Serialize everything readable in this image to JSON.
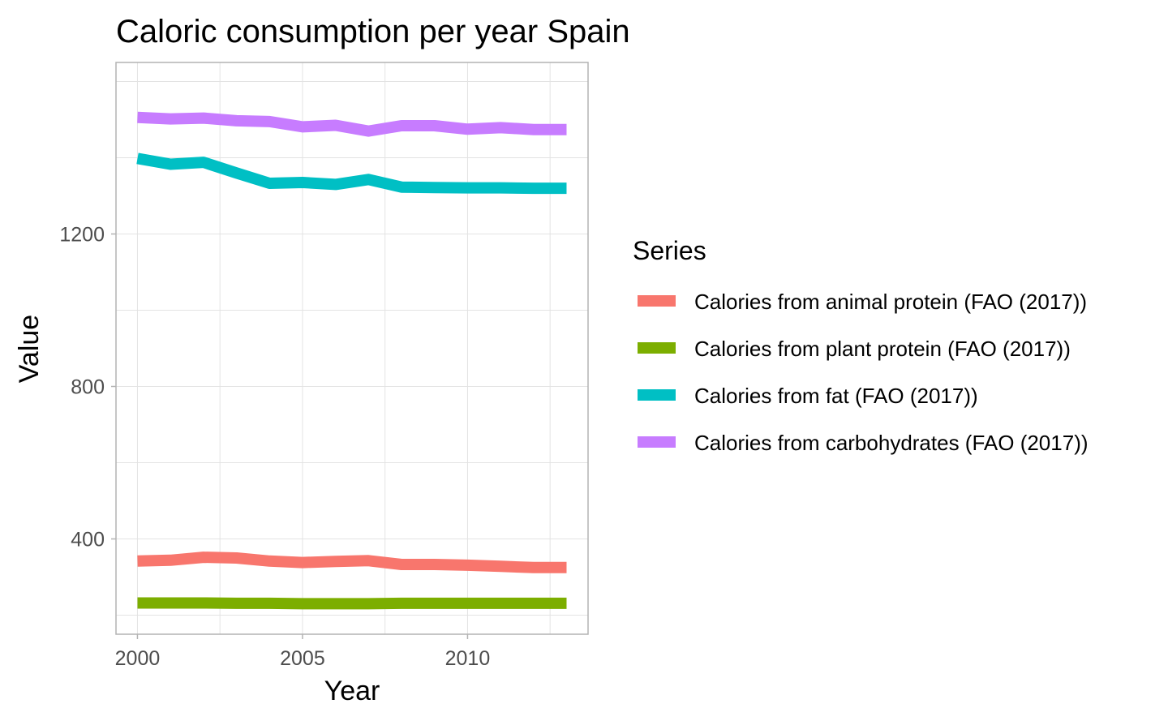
{
  "chart_data": {
    "type": "line",
    "title": "Caloric consumption per year Spain",
    "xlabel": "Year",
    "ylabel": "Value",
    "xlim": [
      1999.35,
      2013.65
    ],
    "ylim": [
      150,
      1650
    ],
    "x_ticks": [
      2000,
      2005,
      2010
    ],
    "y_ticks": [
      400,
      800,
      1200
    ],
    "grid": true,
    "legend": {
      "title": "Series",
      "placement": "right"
    },
    "x": [
      2000,
      2001,
      2002,
      2003,
      2004,
      2005,
      2006,
      2007,
      2008,
      2009,
      2010,
      2011,
      2012,
      2013
    ],
    "series": [
      {
        "name": "Calories from animal protein (FAO (2017))",
        "color": "#F8766D",
        "values": [
          342,
          344,
          352,
          350,
          342,
          338,
          341,
          343,
          333,
          333,
          331,
          328,
          325,
          325
        ]
      },
      {
        "name": "Calories from plant protein (FAO (2017))",
        "color": "#7CAE00",
        "values": [
          232,
          232,
          232,
          231,
          231,
          230,
          230,
          230,
          231,
          231,
          231,
          231,
          231,
          231
        ]
      },
      {
        "name": "Calories from fat (FAO (2017))",
        "color": "#00BFC4",
        "values": [
          1398,
          1383,
          1388,
          1360,
          1333,
          1335,
          1330,
          1343,
          1323,
          1322,
          1321,
          1321,
          1320,
          1320
        ]
      },
      {
        "name": "Calories from carbohydrates (FAO (2017))",
        "color": "#C77CFF",
        "values": [
          1506,
          1502,
          1504,
          1497,
          1495,
          1481,
          1485,
          1470,
          1484,
          1484,
          1475,
          1479,
          1474,
          1474
        ]
      }
    ]
  }
}
